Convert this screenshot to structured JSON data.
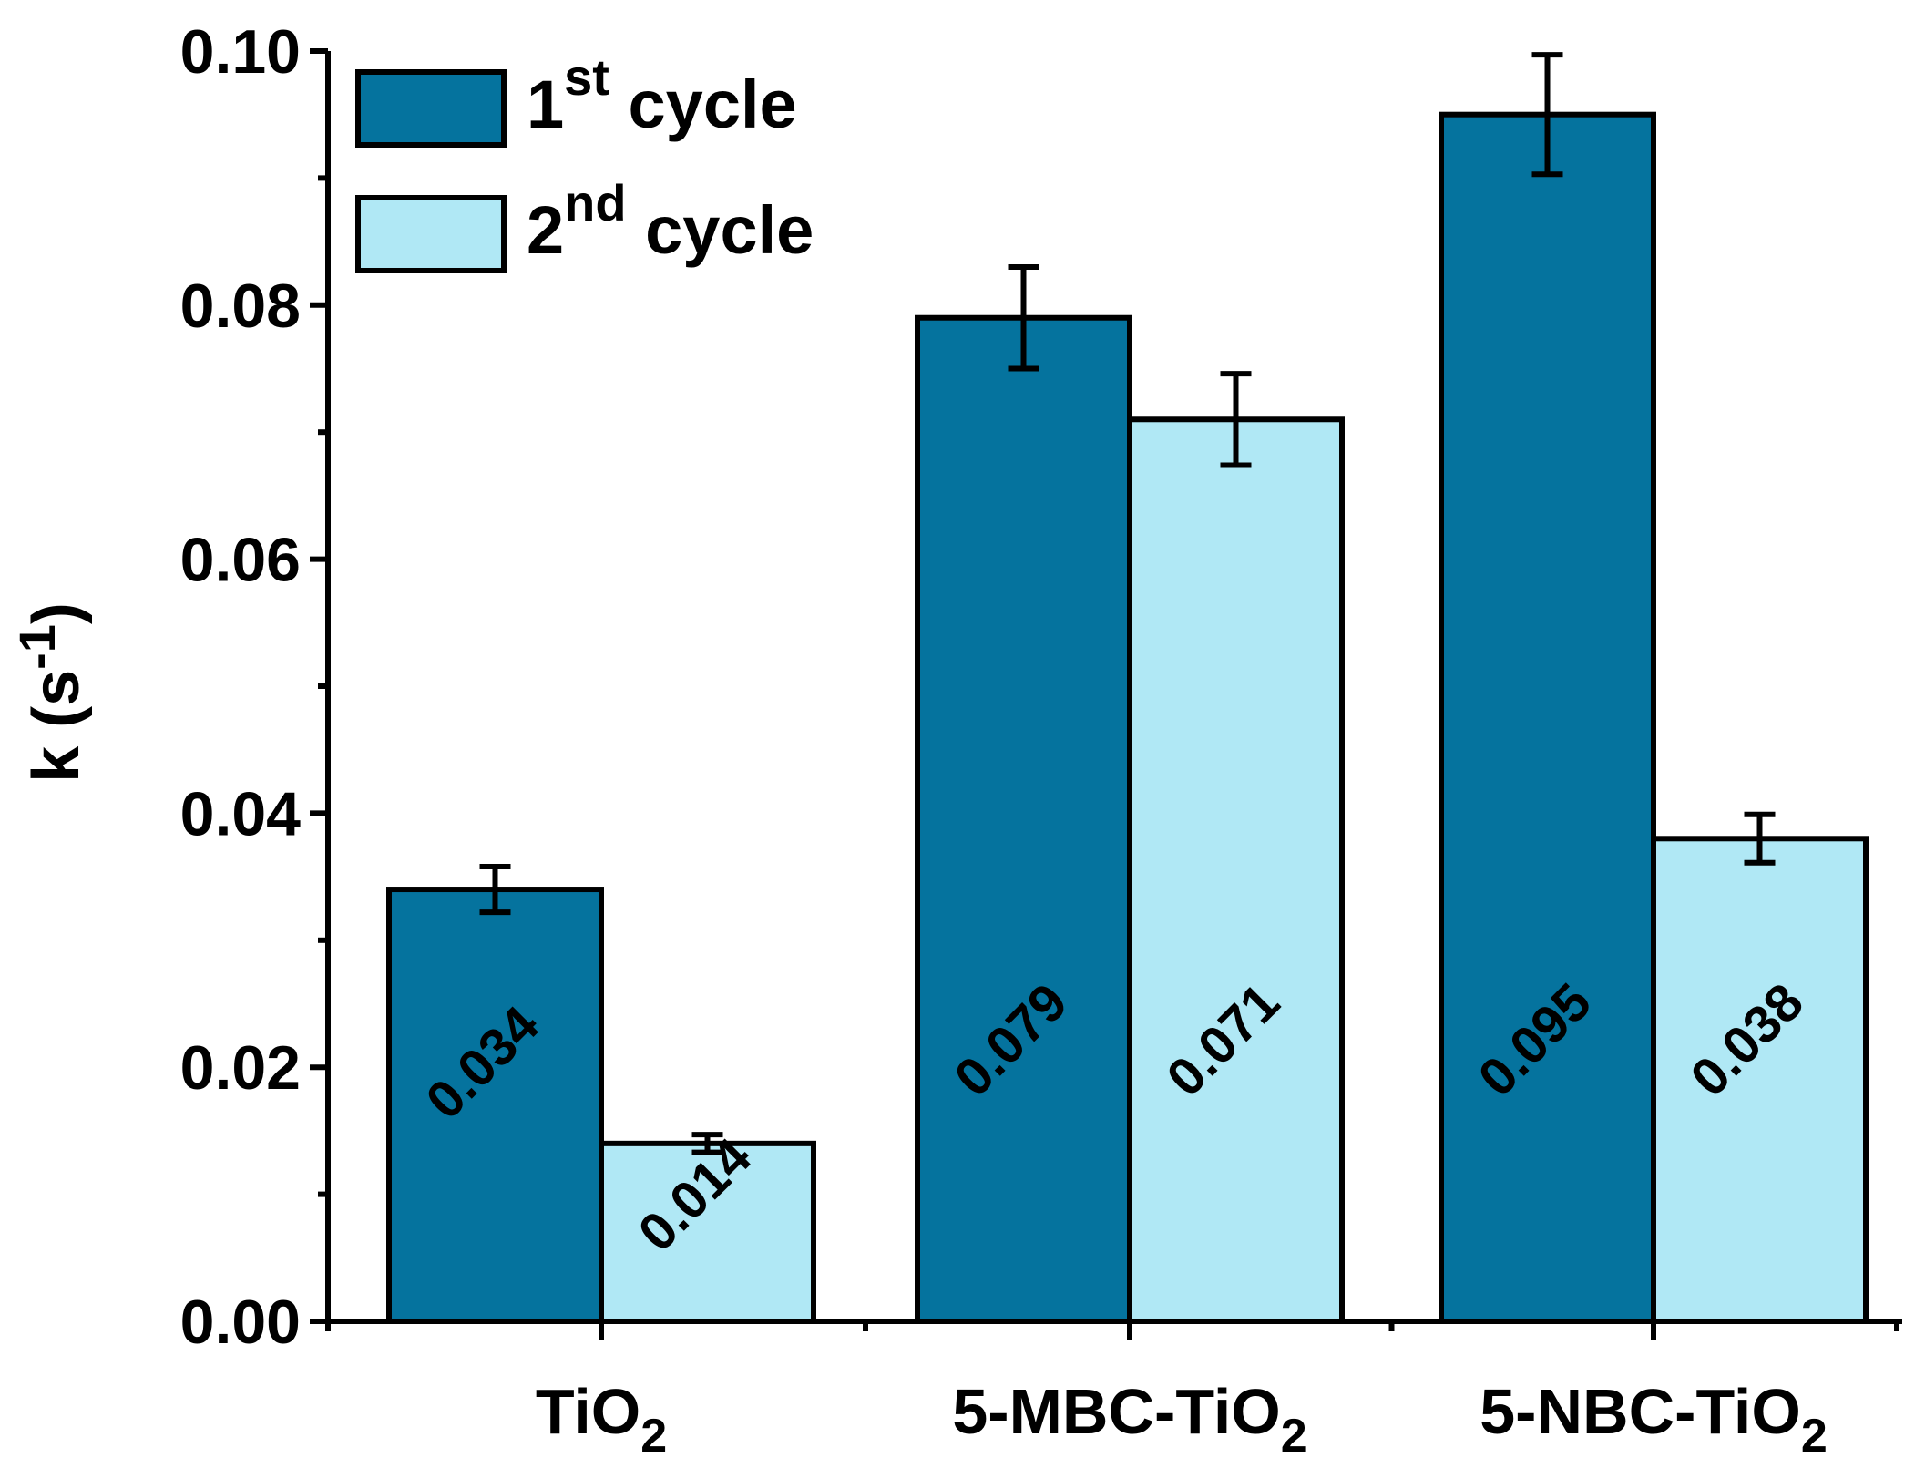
{
  "chart_data": {
    "type": "bar",
    "title": "",
    "ylabel_parts": {
      "base": "k (s",
      "sup": "-1",
      "close": ")"
    },
    "ylim": [
      0.0,
      0.1
    ],
    "yticks": [
      "0.00",
      "0.02",
      "0.04",
      "0.06",
      "0.08",
      "0.10"
    ],
    "ytick_values": [
      0.0,
      0.02,
      0.04,
      0.06,
      0.08,
      0.1
    ],
    "categories": [
      {
        "main": "TiO",
        "sub": "2"
      },
      {
        "main": "5-MBC-TiO",
        "sub": "2"
      },
      {
        "main": "5-NBC-TiO",
        "sub": "2"
      }
    ],
    "series": [
      {
        "name": "1st cycle",
        "legend": {
          "num": "1",
          "sup": "st",
          "text": " cycle"
        },
        "color": "#05739E",
        "values": [
          0.034,
          0.079,
          0.095
        ],
        "labels": [
          "0.034",
          "0.079",
          "0.095"
        ],
        "errors": [
          0.0018,
          0.004,
          0.0047
        ]
      },
      {
        "name": "2nd cycle",
        "legend": {
          "num": "2",
          "sup": "nd",
          "text": " cycle"
        },
        "color": "#B0E8F5",
        "values": [
          0.014,
          0.071,
          0.038
        ],
        "labels": [
          "0.014",
          "0.071",
          "0.038"
        ],
        "errors": [
          0.0007,
          0.0036,
          0.0019
        ]
      }
    ],
    "legend_position": "top-left"
  }
}
